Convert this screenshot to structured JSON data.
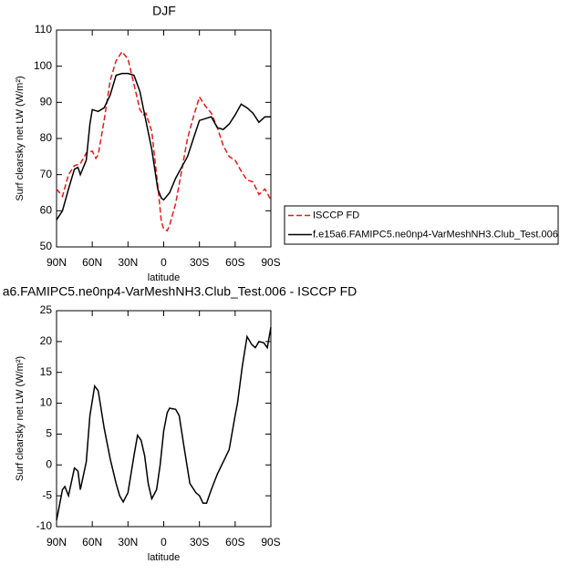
{
  "chart_data": [
    {
      "type": "line",
      "title": "DJF",
      "ylabel": "Surf clearsky net LW (W/m²)",
      "xlabel": "latitude",
      "xlim": [
        90,
        -90
      ],
      "xticks": [
        {
          "value": 90,
          "label": "90N"
        },
        {
          "value": 60,
          "label": "60N"
        },
        {
          "value": 30,
          "label": "30N"
        },
        {
          "value": 0,
          "label": "0"
        },
        {
          "value": -30,
          "label": "30S"
        },
        {
          "value": -60,
          "label": "60S"
        },
        {
          "value": -90,
          "label": "90S"
        }
      ],
      "ylim": [
        50,
        110
      ],
      "yticks": [
        50,
        60,
        70,
        80,
        90,
        100,
        110
      ],
      "legend": "right",
      "series": [
        {
          "name": "ISCCP FD",
          "color": "#e41a1c",
          "linestyle": "dashed",
          "x": [
            90,
            85,
            80,
            75,
            70,
            65,
            60,
            57,
            55,
            50,
            45,
            40,
            35,
            30,
            25,
            20,
            17,
            15,
            10,
            5,
            2,
            0,
            -3,
            -5,
            -10,
            -15,
            -20,
            -25,
            -30,
            -35,
            -40,
            -45,
            -50,
            -55,
            -60,
            -65,
            -70,
            -75,
            -80,
            -85,
            -90
          ],
          "values": [
            66,
            64,
            70,
            72.5,
            73,
            76,
            76.5,
            74.5,
            75.5,
            85,
            96,
            101.5,
            104,
            102,
            95,
            88,
            86.5,
            87,
            82,
            67,
            57,
            55,
            54.5,
            56,
            62,
            71,
            80,
            86,
            91.5,
            89,
            87,
            83,
            78,
            75,
            74,
            71,
            68.5,
            68,
            64.5,
            66,
            63
          ]
        },
        {
          "name": "f.e15a6.FAMIPC5.ne0np4-VarMeshNH3.Club_Test.006",
          "color": "#000000",
          "linestyle": "solid",
          "x": [
            90,
            85,
            80,
            75,
            72,
            70,
            65,
            62,
            60,
            55,
            50,
            45,
            40,
            35,
            30,
            25,
            20,
            15,
            10,
            5,
            2,
            0,
            -5,
            -10,
            -15,
            -20,
            -25,
            -30,
            -35,
            -40,
            -45,
            -50,
            -55,
            -60,
            -65,
            -70,
            -75,
            -80,
            -85,
            -90
          ],
          "values": [
            57.5,
            60,
            66,
            71.5,
            72,
            70,
            74,
            84,
            88,
            87.5,
            88.5,
            92,
            97.5,
            98,
            98,
            97.5,
            93,
            85,
            77,
            66,
            63.5,
            63,
            65,
            69,
            72,
            75,
            80,
            85,
            85.5,
            86,
            83,
            82.5,
            84,
            86.5,
            89.5,
            88.5,
            87,
            84.5,
            86,
            86
          ]
        }
      ]
    },
    {
      "type": "line",
      "title": "a6.FAMIPC5.ne0np4-VarMeshNH3.Club_Test.006 - ISCCP FD",
      "ylabel": "Surf clearsky net LW (W/m²)",
      "xlabel": "latitude",
      "xlim": [
        90,
        -90
      ],
      "xticks": [
        {
          "value": 90,
          "label": "90N"
        },
        {
          "value": 60,
          "label": "60N"
        },
        {
          "value": 30,
          "label": "30N"
        },
        {
          "value": 0,
          "label": "0"
        },
        {
          "value": -30,
          "label": "30S"
        },
        {
          "value": -60,
          "label": "60S"
        },
        {
          "value": -90,
          "label": "90S"
        }
      ],
      "ylim": [
        -10,
        25
      ],
      "yticks": [
        -10,
        -5,
        0,
        5,
        10,
        15,
        20,
        25
      ],
      "series": [
        {
          "color": "#000000",
          "linestyle": "solid",
          "x": [
            90,
            85,
            83,
            80,
            75,
            72,
            70,
            65,
            62,
            58,
            55,
            50,
            45,
            40,
            37,
            34,
            30,
            25,
            22,
            19,
            16,
            13,
            10,
            6,
            3,
            0,
            -3,
            -5,
            -10,
            -13,
            -17,
            -22,
            -27,
            -30,
            -33,
            -36,
            -40,
            -45,
            -50,
            -55,
            -60,
            -62,
            -66,
            -70,
            -74,
            -77,
            -80,
            -84,
            -87,
            -90
          ],
          "values": [
            -9,
            -4,
            -3.5,
            -5,
            -0.5,
            -1,
            -4,
            0.5,
            8,
            12.8,
            12,
            6,
            1,
            -3,
            -5,
            -6,
            -4.5,
            1.5,
            4.8,
            4,
            1.5,
            -3,
            -5.5,
            -4,
            0,
            5.5,
            8.5,
            9.2,
            9,
            8,
            3,
            -3,
            -4.5,
            -5,
            -6.2,
            -6.2,
            -4,
            -1.5,
            0.5,
            2.5,
            8,
            10,
            16,
            20.8,
            19.5,
            19,
            20,
            19.8,
            19,
            22.3
          ]
        }
      ]
    }
  ]
}
